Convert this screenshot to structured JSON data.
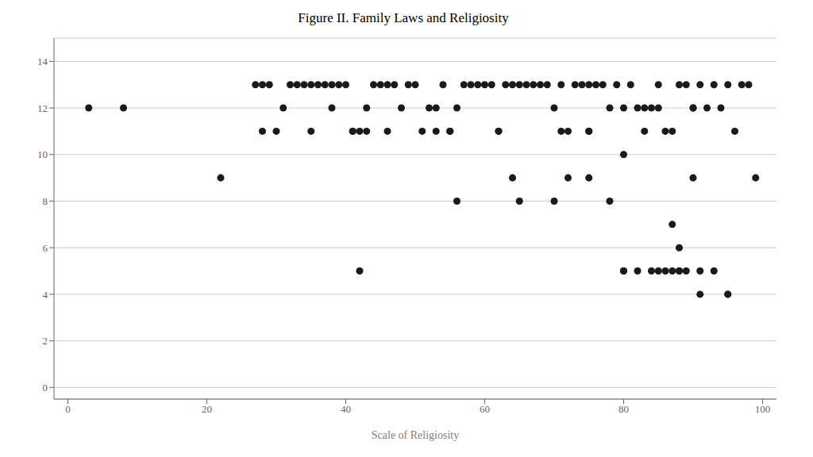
{
  "chart_data": {
    "type": "scatter",
    "title": "Figure II.  Family Laws and Religiosity",
    "xlabel": "Scale of Religiosity",
    "xlim": [
      -2,
      102
    ],
    "ylim": [
      -0.5,
      15
    ],
    "xticks": [
      0,
      20,
      40,
      60,
      80,
      100
    ],
    "yticks": [
      0,
      2,
      4,
      6,
      8,
      10,
      12,
      14
    ],
    "grid": true,
    "color": "#1a1a1a",
    "x": [
      3,
      8,
      22,
      27,
      28,
      29,
      30,
      31,
      32,
      33,
      34,
      35,
      36,
      37,
      38,
      38,
      39,
      40,
      41,
      42,
      43,
      44,
      45,
      46,
      47,
      48,
      49,
      50,
      51,
      52,
      53,
      54,
      55,
      56,
      57,
      58,
      59,
      60,
      61,
      62,
      63,
      64,
      65,
      66,
      67,
      68,
      69,
      70,
      71,
      72,
      73,
      74,
      75,
      76,
      77,
      78,
      79,
      80,
      81,
      82,
      83,
      84,
      85,
      86,
      87,
      88,
      89,
      90,
      91,
      92,
      93,
      94,
      95,
      96,
      97,
      98,
      65,
      70,
      72,
      75,
      78,
      80,
      82,
      85,
      87,
      88,
      89,
      90,
      91,
      93,
      95,
      99,
      42,
      56,
      64,
      75,
      80,
      84,
      86,
      87,
      88,
      91,
      95,
      28,
      35,
      41,
      43,
      46,
      53,
      55,
      62,
      71,
      75,
      80,
      83,
      85,
      88,
      90
    ],
    "values": [
      12,
      12,
      9,
      13,
      13,
      13,
      11,
      12,
      13,
      13,
      13,
      13,
      13,
      13,
      12,
      13,
      13,
      13,
      11,
      11,
      12,
      13,
      13,
      13,
      13,
      12,
      13,
      13,
      11,
      12,
      12,
      13,
      11,
      12,
      13,
      13,
      13,
      13,
      13,
      11,
      13,
      13,
      13,
      13,
      13,
      13,
      13,
      12,
      13,
      11,
      13,
      13,
      13,
      13,
      13,
      12,
      13,
      12,
      13,
      12,
      11,
      12,
      13,
      11,
      11,
      13,
      13,
      12,
      13,
      12,
      13,
      12,
      13,
      11,
      13,
      13,
      8,
      8,
      9,
      9,
      8,
      5,
      5,
      5,
      7,
      6,
      5,
      9,
      5,
      5,
      4,
      9,
      5,
      8,
      9,
      11,
      10,
      5,
      5,
      5,
      5,
      4,
      4,
      11,
      11,
      11,
      11,
      11,
      11,
      11,
      11,
      11,
      11,
      5,
      12,
      12,
      5,
      12
    ]
  }
}
